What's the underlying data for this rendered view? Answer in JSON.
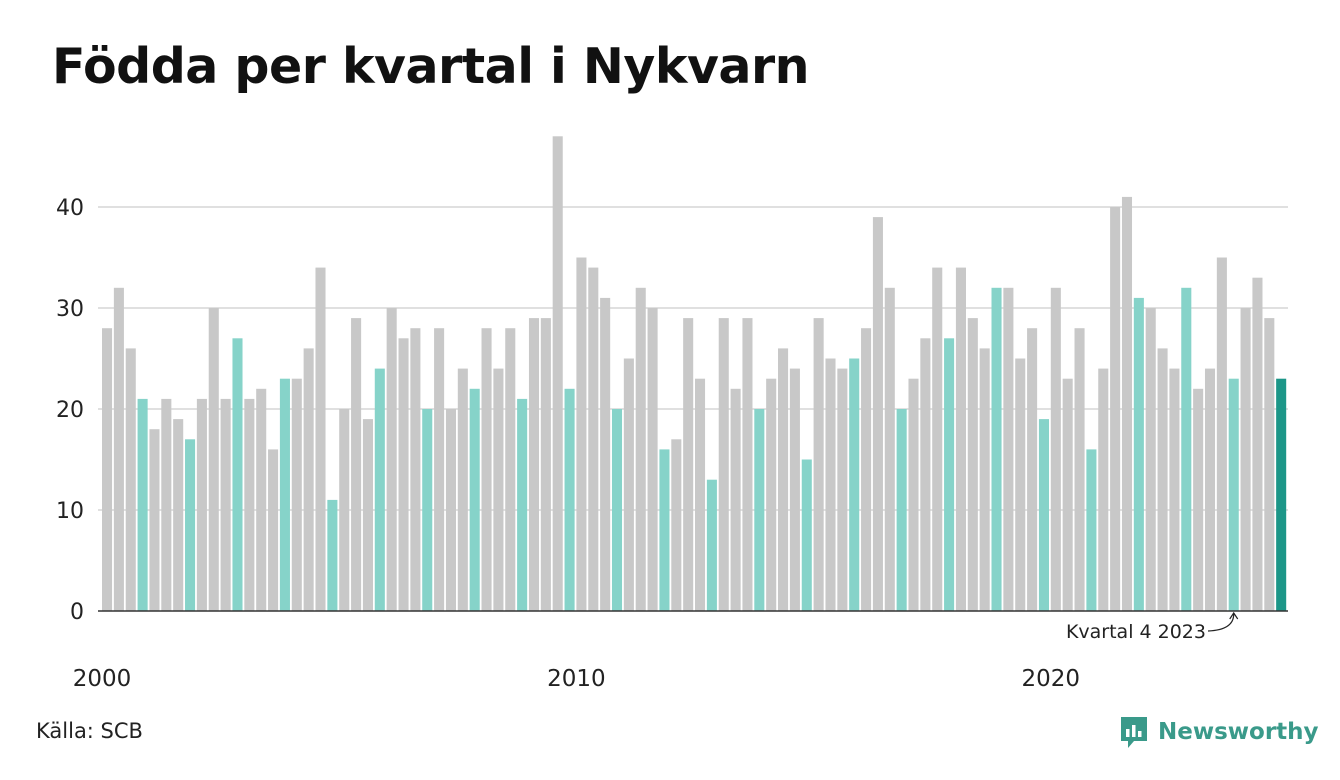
{
  "title": "Födda per kvartal i Nykvarn",
  "source": "Källa: SCB",
  "brand": "Newsworthy",
  "colors": {
    "other_quarter": "#c8c8c8",
    "q4_previous": "#86d3c9",
    "q4_latest": "#1c9688",
    "grid": "#e0e0e0",
    "axis": "#333333",
    "brand": "#3a9a8a"
  },
  "chart_data": {
    "type": "bar",
    "title": "Födda per kvartal i Nykvarn",
    "xlabel": "",
    "ylabel": "",
    "ylim": [
      0,
      47
    ],
    "y_ticks": [
      0,
      10,
      20,
      30,
      40
    ],
    "x_tick_labels": [
      "2000",
      "2010",
      "2020"
    ],
    "grid": true,
    "first_period": "2000 Q1",
    "annotation": "Kvartal 4 2023",
    "values": [
      28,
      32,
      26,
      21,
      18,
      21,
      19,
      17,
      21,
      30,
      21,
      27,
      21,
      22,
      16,
      23,
      23,
      26,
      34,
      11,
      20,
      29,
      19,
      24,
      30,
      27,
      28,
      20,
      28,
      20,
      24,
      22,
      28,
      24,
      28,
      21,
      29,
      29,
      47,
      22,
      35,
      34,
      31,
      20,
      25,
      32,
      30,
      16,
      17,
      29,
      23,
      13,
      29,
      22,
      29,
      20,
      23,
      26,
      24,
      15,
      29,
      25,
      24,
      25,
      28,
      39,
      32,
      20,
      23,
      27,
      34,
      27,
      34,
      29,
      26,
      32,
      32,
      25,
      28,
      19,
      32,
      23,
      28,
      16,
      24,
      40,
      41,
      31,
      30,
      26,
      24,
      32,
      22,
      24,
      35,
      23,
      30,
      33,
      29,
      23
    ]
  }
}
